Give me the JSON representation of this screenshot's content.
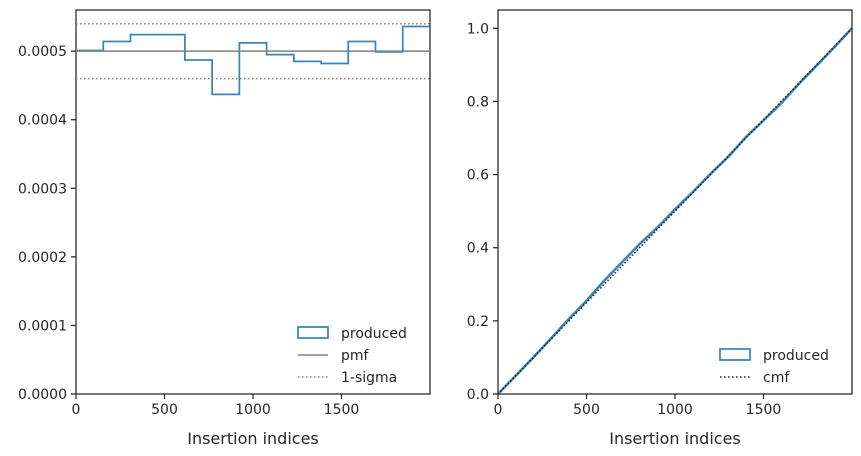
{
  "chart_data": [
    {
      "type": "histogram",
      "panel": "left",
      "xlabel": "Insertion indices",
      "ylabel": "",
      "xlim": [
        0,
        2000
      ],
      "ylim": [
        0,
        0.00056
      ],
      "xticks": [
        0,
        500,
        1000,
        1500
      ],
      "xtick_labels": [
        "0",
        "500",
        "1000",
        "1500"
      ],
      "yticks": [
        0,
        0.0001,
        0.0002,
        0.0003,
        0.0004,
        0.0005
      ],
      "ytick_labels": [
        "0.0000",
        "0.0001",
        "0.0002",
        "0.0003",
        "0.0004",
        "0.0005"
      ],
      "grid": false,
      "legend_position": "lower-right",
      "legend": [
        "produced",
        "pmf",
        "1-sigma"
      ],
      "series": [
        {
          "name": "produced",
          "kind": "step",
          "bin_edges": [
            0,
            154,
            308,
            462,
            615,
            769,
            923,
            1077,
            1231,
            1385,
            1538,
            1692,
            1846,
            2000
          ],
          "values": [
            0.000501,
            0.000514,
            0.000524,
            0.000524,
            0.000487,
            0.000437,
            0.000512,
            0.000495,
            0.000485,
            0.000482,
            0.000514,
            0.000499,
            0.000536
          ],
          "color": "#3a85b5"
        },
        {
          "name": "pmf",
          "kind": "hline",
          "y": 0.0005,
          "color": "#808080",
          "dash": "solid"
        },
        {
          "name": "1-sigma",
          "kind": "hline",
          "y": [
            0.00046,
            0.00054
          ],
          "color": "#808080",
          "dash": "dotted"
        }
      ]
    },
    {
      "type": "line",
      "panel": "right",
      "xlabel": "Insertion indices",
      "ylabel": "",
      "xlim": [
        0,
        2000
      ],
      "ylim": [
        0,
        1.05
      ],
      "xticks": [
        0,
        500,
        1000,
        1500
      ],
      "xtick_labels": [
        "0",
        "500",
        "1000",
        "1500"
      ],
      "yticks": [
        0,
        0.2,
        0.4,
        0.6,
        0.8,
        1.0
      ],
      "ytick_labels": [
        "0.0",
        "0.2",
        "0.4",
        "0.6",
        "0.8",
        "1.0"
      ],
      "grid": false,
      "legend_position": "lower-right",
      "legend": [
        "produced",
        "cmf"
      ],
      "series": [
        {
          "name": "produced",
          "kind": "step-cumulative",
          "x": [
            0,
            100,
            200,
            300,
            400,
            500,
            600,
            700,
            800,
            900,
            1000,
            1100,
            1200,
            1300,
            1400,
            1500,
            1600,
            1700,
            1800,
            1900,
            2000
          ],
          "y": [
            0,
            0.05,
            0.1,
            0.152,
            0.205,
            0.255,
            0.31,
            0.36,
            0.41,
            0.455,
            0.505,
            0.552,
            0.602,
            0.648,
            0.702,
            0.748,
            0.795,
            0.848,
            0.898,
            0.948,
            1.0
          ],
          "color": "#3a85b5"
        },
        {
          "name": "cmf",
          "kind": "line",
          "x": [
            0,
            2000
          ],
          "y": [
            0,
            1.0
          ],
          "color": "#1a1a1a",
          "dash": "dotted"
        }
      ]
    }
  ]
}
